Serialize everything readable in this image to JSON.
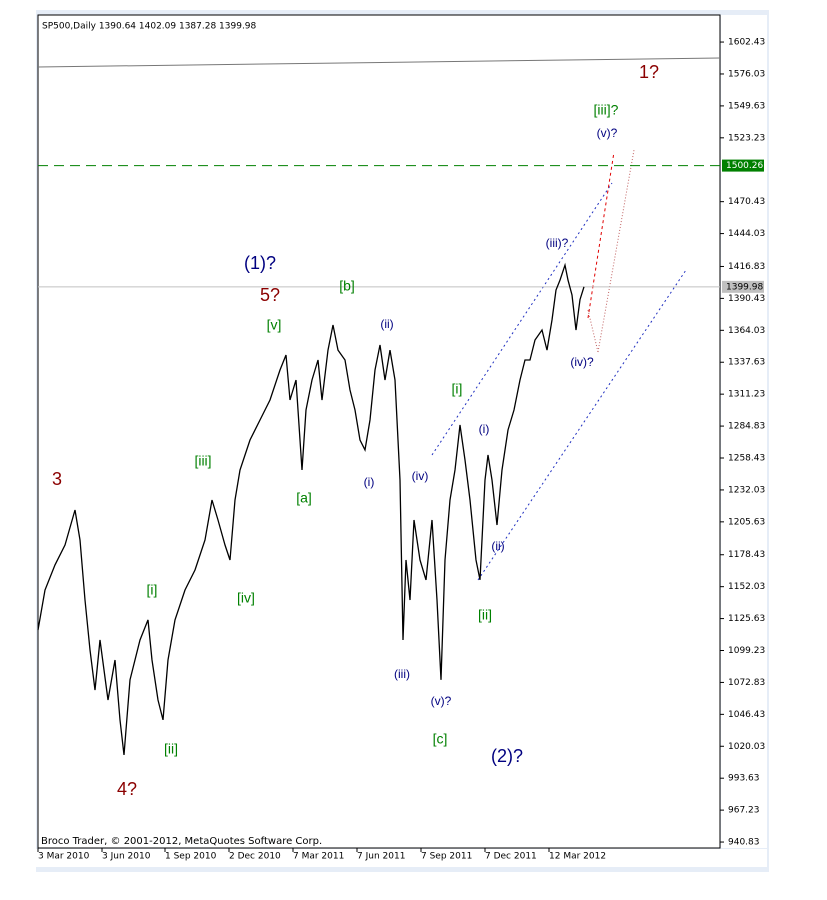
{
  "chart_data": {
    "type": "line",
    "title": "SP500,Daily  1390.64 1402.09 1387.28 1399.98",
    "footer": "Broco Trader, © 2001-2012, MetaQuotes Software Corp.",
    "color": "#000000",
    "x": [
      0,
      7,
      17,
      27,
      37,
      42,
      47,
      52,
      57,
      62,
      70,
      77,
      82,
      86,
      92,
      102,
      110,
      114,
      120,
      125,
      130,
      137,
      147,
      157,
      167,
      174,
      180,
      187,
      192,
      197,
      202,
      212,
      222,
      232,
      242,
      248,
      252,
      258,
      264,
      268,
      274,
      280,
      284,
      290,
      295,
      300,
      307,
      312,
      317,
      322,
      327,
      332,
      337,
      342,
      347,
      352,
      357,
      362,
      365,
      368,
      372,
      376,
      382,
      388,
      394,
      399,
      403,
      407,
      412,
      417,
      422,
      427,
      432,
      438,
      442,
      447,
      450,
      454,
      459,
      464,
      470,
      476,
      482,
      487,
      492,
      497,
      504,
      509,
      514,
      518,
      522,
      527,
      530,
      534,
      538,
      542,
      546
    ],
    "values": [
      1116.2,
      1149.3,
      1170.0,
      1186.5,
      1215.4,
      1190.6,
      1141.0,
      1099.7,
      1066.6,
      1107.9,
      1058.3,
      1091.4,
      1041.8,
      1012.9,
      1074.9,
      1107.9,
      1124.5,
      1091.4,
      1058.3,
      1041.8,
      1091.4,
      1124.5,
      1149.3,
      1165.8,
      1190.6,
      1223.7,
      1207.2,
      1186.5,
      1174.1,
      1223.7,
      1248.5,
      1273.3,
      1289.9,
      1306.4,
      1331.2,
      1343.6,
      1306.4,
      1322.9,
      1248.5,
      1298.1,
      1322.9,
      1339.5,
      1306.4,
      1347.7,
      1368.4,
      1347.7,
      1339.5,
      1314.7,
      1298.1,
      1273.3,
      1265.1,
      1289.9,
      1331.2,
      1351.9,
      1322.9,
      1347.7,
      1322.9,
      1240.2,
      1107.9,
      1174.1,
      1141.0,
      1207.2,
      1174.1,
      1157.6,
      1207.2,
      1141.0,
      1074.9,
      1174.1,
      1223.7,
      1248.5,
      1285.7,
      1256.8,
      1223.7,
      1174.1,
      1157.6,
      1240.2,
      1260.9,
      1240.2,
      1203.0,
      1248.5,
      1281.6,
      1298.1,
      1322.9,
      1339.5,
      1339.5,
      1356.0,
      1364.3,
      1347.7,
      1372.6,
      1397.4,
      1405.6,
      1418.0,
      1405.6,
      1393.2,
      1364.3,
      1389.4,
      1399.98
    ],
    "xlim": [
      0,
      682
    ],
    "xticks": [
      {
        "value": 0,
        "label": "3 Mar 2010"
      },
      {
        "value": 64,
        "label": "3 Jun 2010"
      },
      {
        "value": 127,
        "label": "1 Sep 2010"
      },
      {
        "value": 191,
        "label": "2 Dec 2010"
      },
      {
        "value": 255,
        "label": "7 Mar 2011"
      },
      {
        "value": 319,
        "label": "7 Jun 2011"
      },
      {
        "value": 383,
        "label": "7 Sep 2011"
      },
      {
        "value": 447,
        "label": "7 Dec 2011"
      },
      {
        "value": 511,
        "label": "12 Mar 2012"
      }
    ],
    "ylim": [
      935.9,
      1624.8
    ],
    "yticks": [
      1602.43,
      1576.03,
      1549.63,
      1523.23,
      1470.43,
      1444.03,
      1416.83,
      1390.43,
      1364.03,
      1337.63,
      1311.23,
      1284.83,
      1258.43,
      1232.03,
      1205.63,
      1178.43,
      1152.03,
      1125.63,
      1099.23,
      1072.83,
      1046.43,
      1020.03,
      993.63,
      967.23,
      940.83
    ],
    "levels": [
      {
        "value": 1500.26,
        "color": "#008000",
        "style": "dashed"
      },
      {
        "value": 1399.98,
        "color": "#c0c0c0",
        "style": "solid"
      }
    ],
    "annotations": [
      {
        "text": "3",
        "color": "#8b0000"
      },
      {
        "text": "4?",
        "color": "#8b0000"
      },
      {
        "text": "5?",
        "color": "#8b0000"
      },
      {
        "text": "1?",
        "color": "#8b0000"
      },
      {
        "text": "(1)?",
        "color": "#000080"
      },
      {
        "text": "(2)?",
        "color": "#000080"
      },
      {
        "text": "[i]",
        "color": "#008000"
      },
      {
        "text": "[ii]",
        "color": "#008000"
      },
      {
        "text": "[iii]",
        "color": "#008000"
      },
      {
        "text": "[iv]",
        "color": "#008000"
      },
      {
        "text": "[v]",
        "color": "#008000"
      },
      {
        "text": "[a]",
        "color": "#008000"
      },
      {
        "text": "[b]",
        "color": "#008000"
      },
      {
        "text": "[c]",
        "color": "#008000"
      },
      {
        "text": "(i)",
        "color": "#000080"
      },
      {
        "text": "(ii)",
        "color": "#000080"
      },
      {
        "text": "(iii)",
        "color": "#000080"
      },
      {
        "text": "(iv)",
        "color": "#000080"
      },
      {
        "text": "(v)?",
        "color": "#000080"
      },
      {
        "text": "[i]",
        "color": "#008000"
      },
      {
        "text": "(i)",
        "color": "#000080"
      },
      {
        "text": "(ii)",
        "color": "#000080"
      },
      {
        "text": "[ii]",
        "color": "#008000"
      },
      {
        "text": "(iii)?",
        "color": "#000080"
      },
      {
        "text": "(iv)?",
        "color": "#000080"
      },
      {
        "text": "[iii]?",
        "color": "#008000"
      },
      {
        "text": "(v)?",
        "color": "#000080"
      }
    ]
  }
}
